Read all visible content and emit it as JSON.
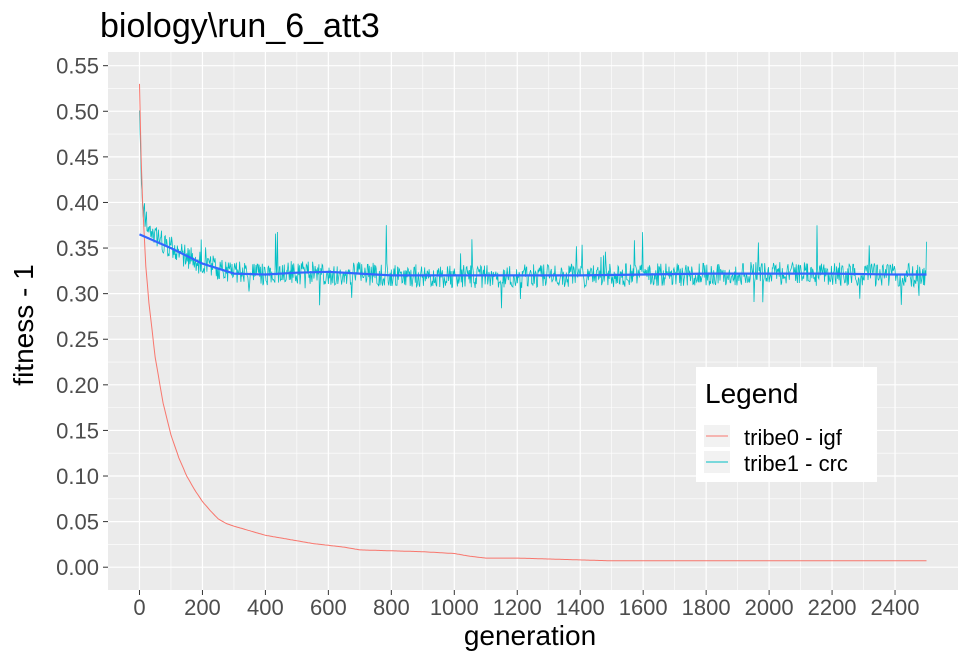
{
  "chart_data": {
    "type": "line",
    "title": "biology\\run_6_att3",
    "xlabel": "generation",
    "ylabel": "fitness - 1",
    "xlim": [
      -100,
      2600
    ],
    "ylim": [
      -0.025,
      0.565
    ],
    "x_ticks": [
      0,
      200,
      400,
      600,
      800,
      1000,
      1200,
      1400,
      1600,
      1800,
      2000,
      2200,
      2400
    ],
    "y_ticks": [
      0.0,
      0.05,
      0.1,
      0.15,
      0.2,
      0.25,
      0.3,
      0.35,
      0.4,
      0.45,
      0.5,
      0.55
    ],
    "y_tick_labels": [
      "0.00",
      "0.05",
      "0.10",
      "0.15",
      "0.20",
      "0.25",
      "0.30",
      "0.35",
      "0.40",
      "0.45",
      "0.50",
      "0.55"
    ],
    "grid": true,
    "legend": {
      "title": "Legend",
      "position": "right",
      "entries": [
        "tribe0 - igf",
        "tribe1 - crc"
      ]
    },
    "colors": {
      "panel": "#ebebeb",
      "grid": "#ffffff",
      "tribe0": "#f8766d",
      "tribe1": "#00bfc4",
      "smooth": "#3366ff"
    },
    "series": [
      {
        "name": "tribe0 - igf",
        "points": [
          [
            0,
            0.53
          ],
          [
            5,
            0.45
          ],
          [
            10,
            0.4
          ],
          [
            20,
            0.33
          ],
          [
            30,
            0.29
          ],
          [
            50,
            0.23
          ],
          [
            75,
            0.18
          ],
          [
            100,
            0.145
          ],
          [
            125,
            0.12
          ],
          [
            150,
            0.1
          ],
          [
            175,
            0.085
          ],
          [
            200,
            0.072
          ],
          [
            225,
            0.062
          ],
          [
            250,
            0.053
          ],
          [
            275,
            0.048
          ],
          [
            300,
            0.045
          ],
          [
            350,
            0.04
          ],
          [
            400,
            0.035
          ],
          [
            450,
            0.032
          ],
          [
            500,
            0.029
          ],
          [
            550,
            0.026
          ],
          [
            600,
            0.024
          ],
          [
            650,
            0.022
          ],
          [
            700,
            0.019
          ],
          [
            800,
            0.018
          ],
          [
            900,
            0.017
          ],
          [
            1000,
            0.015
          ],
          [
            1050,
            0.012
          ],
          [
            1100,
            0.01
          ],
          [
            1200,
            0.01
          ],
          [
            1300,
            0.009
          ],
          [
            1400,
            0.008
          ],
          [
            1500,
            0.007
          ],
          [
            1700,
            0.007
          ],
          [
            2000,
            0.007
          ],
          [
            2500,
            0.007
          ]
        ]
      },
      {
        "name": "tribe1 - crc",
        "center": [
          [
            0,
            0.5
          ],
          [
            3,
            0.45
          ],
          [
            6,
            0.42
          ],
          [
            10,
            0.4
          ],
          [
            20,
            0.38
          ],
          [
            40,
            0.37
          ],
          [
            80,
            0.355
          ],
          [
            150,
            0.34
          ],
          [
            250,
            0.325
          ],
          [
            350,
            0.321
          ],
          [
            500,
            0.323
          ],
          [
            700,
            0.322
          ],
          [
            800,
            0.32
          ],
          [
            1000,
            0.319
          ],
          [
            1500,
            0.32
          ],
          [
            2000,
            0.322
          ],
          [
            2500,
            0.32
          ]
        ],
        "noise_amplitude": 0.013
      },
      {
        "name": "smooth",
        "points": [
          [
            0,
            0.365
          ],
          [
            100,
            0.35
          ],
          [
            200,
            0.333
          ],
          [
            300,
            0.322
          ],
          [
            400,
            0.321
          ],
          [
            500,
            0.323
          ],
          [
            600,
            0.324
          ],
          [
            700,
            0.322
          ],
          [
            800,
            0.32
          ],
          [
            900,
            0.32
          ],
          [
            1000,
            0.32
          ],
          [
            1200,
            0.32
          ],
          [
            1400,
            0.32
          ],
          [
            1600,
            0.321
          ],
          [
            1800,
            0.322
          ],
          [
            2000,
            0.322
          ],
          [
            2200,
            0.322
          ],
          [
            2400,
            0.321
          ],
          [
            2500,
            0.321
          ]
        ]
      }
    ]
  }
}
